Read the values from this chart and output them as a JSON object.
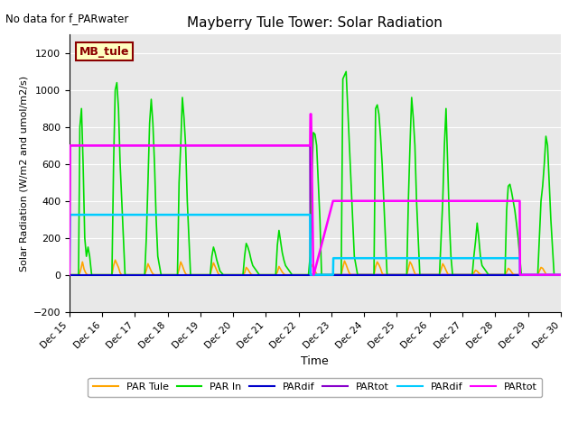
{
  "title": "Mayberry Tule Tower: Solar Radiation",
  "subtitle": "No data for f_PARwater",
  "ylabel": "Solar Radiation (W/m2 and umol/m2/s)",
  "xlabel": "Time",
  "ylim": [
    -200,
    1300
  ],
  "yticks": [
    -200,
    0,
    200,
    400,
    600,
    800,
    1000,
    1200
  ],
  "bg_color": "#e8e8e8",
  "legend_box_label": "MB_tule",
  "legend_box_color": "#ffffc0",
  "legend_box_edge": "#8b0000",
  "legend_entries": [
    {
      "label": "PAR Tule",
      "color": "#ffa500",
      "lw": 1.5
    },
    {
      "label": "PAR In",
      "color": "#00dd00",
      "lw": 1.5
    },
    {
      "label": "PARdif",
      "color": "#0000cc",
      "lw": 1.5
    },
    {
      "label": "PARtot",
      "color": "#8800cc",
      "lw": 1.5
    },
    {
      "label": "PARdif",
      "color": "#00ccff",
      "lw": 1.5
    },
    {
      "label": "PARtot",
      "color": "#ff00ff",
      "lw": 1.5
    }
  ],
  "xmin": 15.0,
  "xmax": 30.0,
  "xtick_positions": [
    15,
    16,
    17,
    18,
    19,
    20,
    21,
    22,
    23,
    24,
    25,
    26,
    27,
    28,
    29,
    30
  ],
  "xtick_labels": [
    "Dec 15",
    "Dec 16",
    "Dec 17",
    "Dec 18",
    "Dec 19",
    "Dec 20",
    "Dec 21",
    "Dec 22",
    "Dec 23",
    "Dec 24",
    "Dec 25",
    "Dec 26",
    "Dec 27",
    "Dec 28",
    "Dec 29",
    "Dec 30"
  ],
  "series": {
    "PAR_tule": {
      "color": "#ffa500",
      "lw": 1.2,
      "x": [
        15.0,
        15.3,
        15.35,
        15.4,
        15.45,
        15.5,
        15.55,
        15.6,
        16.0,
        16.3,
        16.35,
        16.4,
        16.45,
        16.5,
        16.55,
        16.6,
        16.7,
        17.0,
        17.3,
        17.35,
        17.4,
        17.45,
        17.5,
        17.55,
        17.6,
        18.0,
        18.3,
        18.35,
        18.4,
        18.45,
        18.5,
        18.55,
        18.6,
        19.0,
        19.3,
        19.35,
        19.4,
        19.45,
        19.5,
        19.55,
        19.6,
        20.0,
        20.3,
        20.35,
        20.4,
        20.45,
        20.5,
        20.55,
        20.6,
        21.0,
        21.3,
        21.35,
        21.4,
        21.45,
        21.5,
        21.55,
        21.6,
        22.0,
        22.3,
        22.35,
        22.4,
        22.45,
        22.5,
        22.55,
        22.6,
        23.0,
        23.3,
        23.35,
        23.4,
        23.45,
        23.5,
        23.55,
        23.6,
        24.0,
        24.3,
        24.35,
        24.4,
        24.45,
        24.5,
        24.55,
        24.6,
        25.0,
        25.3,
        25.35,
        25.4,
        25.45,
        25.5,
        25.55,
        25.6,
        26.0,
        26.3,
        26.35,
        26.4,
        26.45,
        26.5,
        26.55,
        26.6,
        27.0,
        27.3,
        27.35,
        27.4,
        27.45,
        27.5,
        27.55,
        27.6,
        28.0,
        28.3,
        28.35,
        28.4,
        28.45,
        28.5,
        28.55,
        28.6,
        29.0,
        29.3,
        29.35,
        29.4,
        29.45,
        29.5,
        29.55,
        29.6,
        29.7,
        30.0
      ],
      "y": [
        0,
        0,
        30,
        70,
        30,
        10,
        0,
        0,
        0,
        0,
        50,
        80,
        60,
        40,
        10,
        0,
        0,
        0,
        0,
        25,
        60,
        40,
        20,
        5,
        0,
        0,
        0,
        30,
        70,
        50,
        25,
        5,
        0,
        0,
        0,
        35,
        65,
        45,
        25,
        5,
        0,
        0,
        0,
        10,
        40,
        30,
        15,
        3,
        0,
        0,
        0,
        15,
        45,
        30,
        15,
        4,
        0,
        0,
        0,
        20,
        55,
        40,
        20,
        5,
        0,
        0,
        0,
        40,
        75,
        55,
        30,
        8,
        0,
        0,
        0,
        45,
        70,
        55,
        35,
        8,
        0,
        0,
        0,
        35,
        70,
        55,
        30,
        7,
        0,
        0,
        0,
        30,
        60,
        45,
        25,
        6,
        0,
        0,
        0,
        10,
        25,
        20,
        10,
        3,
        0,
        0,
        0,
        15,
        35,
        28,
        15,
        4,
        0,
        0,
        0,
        20,
        40,
        35,
        20,
        5,
        0,
        0,
        0
      ]
    },
    "PAR_in": {
      "color": "#00dd00",
      "lw": 1.2,
      "x": [
        15.0,
        15.28,
        15.32,
        15.37,
        15.42,
        15.47,
        15.52,
        15.57,
        15.62,
        15.68,
        15.73,
        16.0,
        16.3,
        16.35,
        16.4,
        16.45,
        16.5,
        16.55,
        16.6,
        16.65,
        16.7,
        16.8,
        17.0,
        17.3,
        17.35,
        17.4,
        17.45,
        17.5,
        17.55,
        17.6,
        17.65,
        17.7,
        17.8,
        18.0,
        18.3,
        18.35,
        18.4,
        18.45,
        18.5,
        18.55,
        18.6,
        18.65,
        18.7,
        18.8,
        19.0,
        19.3,
        19.35,
        19.4,
        19.45,
        19.5,
        19.55,
        19.6,
        19.65,
        19.7,
        19.8,
        20.0,
        20.3,
        20.35,
        20.4,
        20.45,
        20.5,
        20.55,
        20.6,
        20.8,
        21.0,
        21.3,
        21.35,
        21.4,
        21.45,
        21.5,
        21.55,
        21.6,
        21.8,
        22.0,
        22.3,
        22.35,
        22.4,
        22.45,
        22.5,
        22.55,
        22.6,
        22.65,
        22.7,
        22.8,
        23.0,
        23.3,
        23.35,
        23.4,
        23.45,
        23.5,
        23.55,
        23.6,
        23.65,
        23.7,
        23.8,
        24.0,
        24.3,
        24.35,
        24.4,
        24.45,
        24.5,
        24.55,
        24.6,
        24.65,
        24.7,
        24.8,
        25.0,
        25.3,
        25.35,
        25.4,
        25.45,
        25.5,
        25.55,
        25.6,
        25.65,
        25.7,
        25.8,
        26.0,
        26.3,
        26.35,
        26.4,
        26.45,
        26.5,
        26.55,
        26.6,
        26.65,
        26.7,
        26.8,
        27.0,
        27.3,
        27.35,
        27.4,
        27.45,
        27.5,
        27.55,
        27.6,
        27.8,
        28.0,
        28.3,
        28.35,
        28.4,
        28.45,
        28.5,
        28.55,
        28.6,
        28.65,
        28.7,
        28.8,
        29.0,
        29.3,
        29.35,
        29.4,
        29.45,
        29.5,
        29.55,
        29.6,
        29.65,
        29.7,
        29.8,
        30.0
      ],
      "y": [
        0,
        0,
        800,
        900,
        600,
        200,
        100,
        150,
        100,
        0,
        0,
        0,
        0,
        600,
        1000,
        1040,
        900,
        600,
        400,
        200,
        0,
        0,
        0,
        0,
        200,
        500,
        820,
        950,
        820,
        600,
        300,
        100,
        0,
        0,
        0,
        500,
        700,
        960,
        850,
        700,
        400,
        200,
        0,
        0,
        0,
        0,
        100,
        150,
        120,
        80,
        50,
        20,
        10,
        0,
        0,
        0,
        0,
        100,
        170,
        150,
        120,
        80,
        50,
        0,
        0,
        0,
        160,
        240,
        180,
        120,
        80,
        50,
        0,
        0,
        0,
        100,
        520,
        770,
        760,
        700,
        500,
        300,
        0,
        0,
        0,
        0,
        1060,
        1080,
        1100,
        900,
        700,
        500,
        300,
        100,
        0,
        0,
        0,
        900,
        920,
        870,
        750,
        600,
        400,
        200,
        0,
        0,
        0,
        0,
        400,
        700,
        960,
        850,
        700,
        400,
        200,
        0,
        0,
        0,
        0,
        200,
        400,
        700,
        900,
        600,
        300,
        100,
        0,
        0,
        0,
        0,
        100,
        180,
        280,
        200,
        100,
        50,
        0,
        0,
        0,
        350,
        480,
        490,
        450,
        400,
        350,
        280,
        200,
        0,
        0,
        0,
        200,
        400,
        480,
        600,
        750,
        700,
        500,
        300,
        0,
        0
      ]
    },
    "PARdif_blue": {
      "color": "#0000cc",
      "lw": 1.5,
      "x": [
        15.0,
        30.0
      ],
      "y": [
        0,
        0
      ]
    },
    "PARtot_purple": {
      "color": "#8800cc",
      "lw": 1.5,
      "x": [
        15.0,
        15.02,
        22.35,
        22.36,
        30.0
      ],
      "y": [
        0,
        700,
        700,
        0,
        0
      ]
    },
    "PARdif_cyan": {
      "color": "#00ccff",
      "lw": 1.8,
      "x": [
        15.0,
        15.02,
        22.35,
        22.36,
        23.05,
        23.06,
        28.75,
        28.76,
        30.0
      ],
      "y": [
        0,
        325,
        325,
        0,
        0,
        90,
        90,
        0,
        0
      ]
    },
    "PARtot_magenta": {
      "color": "#ff00ff",
      "lw": 1.8,
      "x": [
        15.0,
        15.02,
        22.35,
        22.36,
        22.38,
        22.45,
        22.46,
        23.05,
        23.06,
        28.75,
        28.76,
        30.0
      ],
      "y": [
        0,
        700,
        700,
        870,
        870,
        0,
        0,
        400,
        400,
        400,
        0,
        0
      ]
    }
  }
}
